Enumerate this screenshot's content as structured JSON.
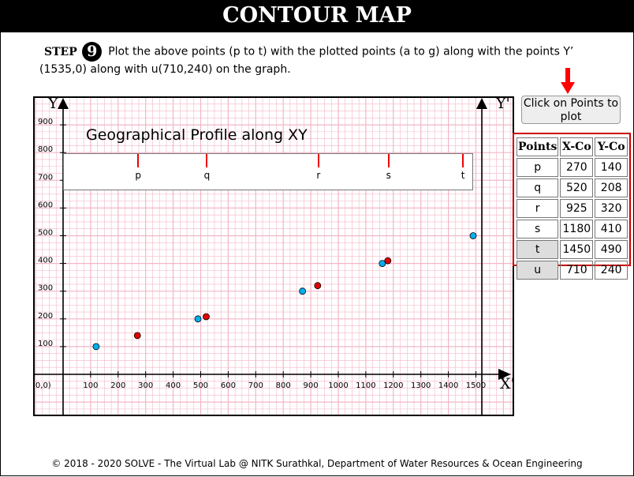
{
  "header": {
    "title": "CONTOUR MAP"
  },
  "step": {
    "label": "STEP",
    "number": "9",
    "instruction": "Plot the above points (p to t) with the plotted points (a to g) along with the points Y’ (1535,0) along with u(710,240) on the graph."
  },
  "chart_data": {
    "type": "scatter",
    "x_ticks": [
      "100",
      "200",
      "300",
      "400",
      "500",
      "600",
      "700",
      "800",
      "900",
      "1000",
      "1100",
      "1200",
      "1300",
      "1400",
      "1500"
    ],
    "y_ticks": [
      "100",
      "200",
      "300",
      "400",
      "500",
      "600",
      "700",
      "800",
      "900"
    ],
    "origin_label": "(0,0)",
    "xlim": [
      0,
      1550
    ],
    "ylim": [
      0,
      950
    ],
    "axis_labels": {
      "y_left": "Y",
      "y_right": "Y'",
      "x_right": "X'"
    },
    "grid": true,
    "series": [
      {
        "color": "#00b0f0",
        "points": [
          [
            120,
            100
          ],
          [
            490,
            200
          ],
          [
            870,
            300
          ],
          [
            1160,
            400
          ],
          [
            1490,
            500
          ]
        ]
      },
      {
        "color": "#e00000",
        "points": [
          [
            270,
            140
          ],
          [
            520,
            208
          ],
          [
            925,
            320
          ],
          [
            1180,
            410
          ]
        ]
      }
    ]
  },
  "profile": {
    "title": "Geographical Profile along XY",
    "markers": [
      "p",
      "q",
      "r",
      "s",
      "t"
    ]
  },
  "plot_button": {
    "label": "Click on Points to plot"
  },
  "points_table": {
    "headers": [
      "Points",
      "X-Co",
      "Y-Co"
    ],
    "rows": [
      [
        "p",
        "270",
        "140"
      ],
      [
        "q",
        "520",
        "208"
      ],
      [
        "r",
        "925",
        "320"
      ],
      [
        "s",
        "1180",
        "410"
      ],
      [
        "t",
        "1450",
        "490"
      ],
      [
        "u",
        "710",
        "240"
      ]
    ]
  },
  "footer": {
    "text": "© 2018 - 2020 SOLVE - The Virtual Lab @ NITK Surathkal, Department of Water Resources & Ocean Engineering"
  },
  "colors": {
    "accent": "#e00000",
    "grid": "#f3b6c6",
    "point_blue": "#00b0f0",
    "point_red": "#e00000"
  }
}
